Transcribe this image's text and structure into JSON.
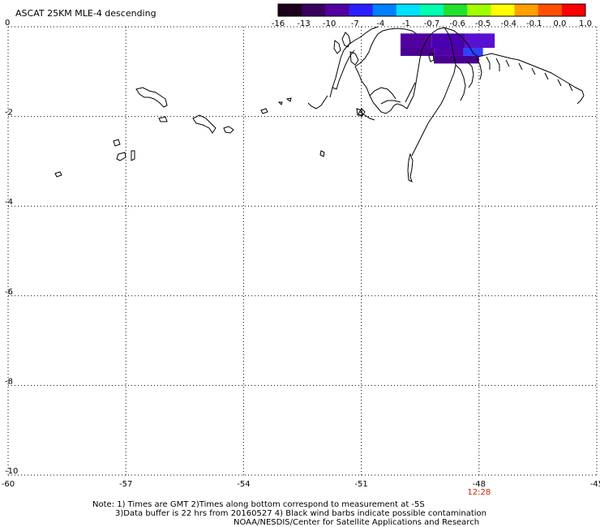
{
  "title": "ASCAT 25KM MLE-4 descending",
  "colorbar": {
    "colors": [
      "#1a0018",
      "#3a0060",
      "#5200a0",
      "#2a20ff",
      "#0080ff",
      "#00e0ff",
      "#00ffb0",
      "#20e030",
      "#a0ff00",
      "#ffff00",
      "#ffa000",
      "#ff5000",
      "#ff0000"
    ],
    "tick_labels": [
      "-16",
      "-13",
      "-10",
      "-7",
      "-4",
      "-1",
      "-0.7",
      "-0.6",
      "-0.5",
      "-0.4",
      "-0.1",
      "0.0",
      "1.0"
    ]
  },
  "map": {
    "lon_range": [
      -60,
      -45
    ],
    "lat_range": [
      -10,
      0
    ],
    "lon_ticks": [
      "-60",
      "-57",
      "-54",
      "-51",
      "-48",
      "-45"
    ],
    "lat_ticks": [
      "0",
      "-2",
      "-4",
      "-6",
      "-8",
      "-10"
    ],
    "grid": true,
    "time_label": "12:28",
    "time_lon": -48,
    "data_cells": [
      {
        "lon": -50.0,
        "lat": -0.15,
        "w": 0.8,
        "h": 0.32,
        "color": "#5200a0"
      },
      {
        "lon": -49.2,
        "lat": -0.15,
        "w": 0.85,
        "h": 0.32,
        "color": "#4a00b0"
      },
      {
        "lon": -48.35,
        "lat": -0.15,
        "w": 0.75,
        "h": 0.32,
        "color": "#5a10d0"
      },
      {
        "lon": -50.0,
        "lat": -0.47,
        "w": 0.85,
        "h": 0.18,
        "color": "#4a0090"
      },
      {
        "lon": -49.15,
        "lat": -0.47,
        "w": 0.75,
        "h": 0.18,
        "color": "#5000a8"
      },
      {
        "lon": -48.4,
        "lat": -0.47,
        "w": 0.5,
        "h": 0.18,
        "color": "#3040ff"
      },
      {
        "lon": -49.15,
        "lat": -0.65,
        "w": 1.15,
        "h": 0.17,
        "color": "#4a0090"
      }
    ]
  },
  "notes": [
    "Note: 1) Times are GMT 2)Times along bottom correspond to measurement at -5S",
    "3)Data buffer is 22 hrs from 20160527 4) Black wind barbs indicate possible contamination",
    "NOAA/NESDIS/Center for Satellite Applications and Research"
  ]
}
